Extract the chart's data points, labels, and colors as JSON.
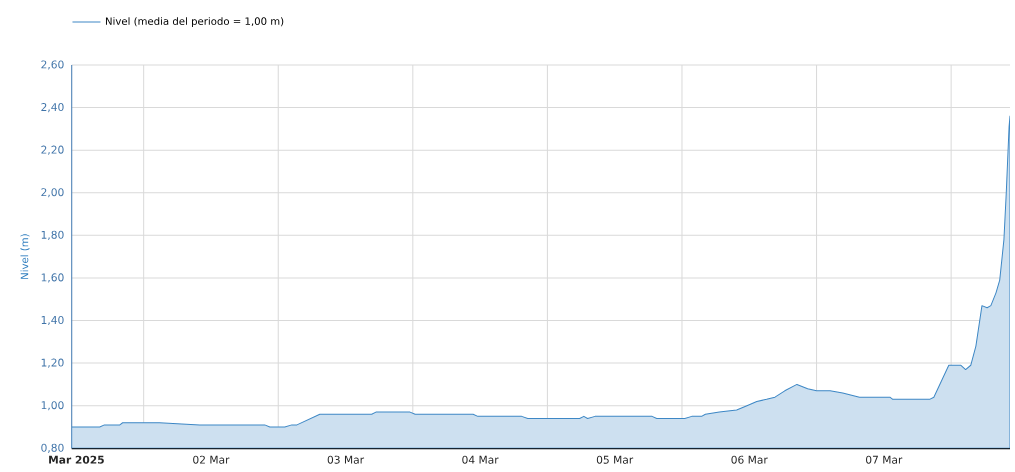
{
  "chart_data": {
    "type": "area",
    "ylabel": "Nivel (m)",
    "x": [
      "2025-02-28T23:10",
      "2025-03-01T04:10",
      "2025-03-01T05:00",
      "2025-03-01T07:45",
      "2025-03-01T08:15",
      "2025-03-01T14:50",
      "2025-03-01T22:00",
      "2025-03-02T09:35",
      "2025-03-02T10:30",
      "2025-03-02T13:10",
      "2025-03-02T14:25",
      "2025-03-02T15:20",
      "2025-03-02T19:25",
      "2025-03-03T04:40",
      "2025-03-03T05:25",
      "2025-03-03T11:30",
      "2025-03-03T12:25",
      "2025-03-03T22:45",
      "2025-03-03T23:35",
      "2025-03-04T07:25",
      "2025-03-04T08:30",
      "2025-03-04T17:45",
      "2025-03-04T18:30",
      "2025-03-04T19:10",
      "2025-03-04T20:30",
      "2025-03-05T06:40",
      "2025-03-05T07:30",
      "2025-03-05T12:30",
      "2025-03-05T13:45",
      "2025-03-05T15:30",
      "2025-03-05T16:10",
      "2025-03-05T18:40",
      "2025-03-05T21:45",
      "2025-03-05T23:35",
      "2025-03-06T01:20",
      "2025-03-06T03:05",
      "2025-03-06T04:35",
      "2025-03-06T06:20",
      "2025-03-06T08:30",
      "2025-03-06T10:25",
      "2025-03-06T12:00",
      "2025-03-06T14:25",
      "2025-03-06T16:40",
      "2025-03-06T19:40",
      "2025-03-07T01:05",
      "2025-03-07T01:35",
      "2025-03-07T08:10",
      "2025-03-07T08:55",
      "2025-03-07T11:35",
      "2025-03-07T13:45",
      "2025-03-07T14:35",
      "2025-03-07T15:30",
      "2025-03-07T16:25",
      "2025-03-07T17:30",
      "2025-03-07T18:25",
      "2025-03-07T19:05",
      "2025-03-07T20:00",
      "2025-03-07T20:40",
      "2025-03-07T21:25",
      "2025-03-07T21:50",
      "2025-03-07T22:20",
      "2025-03-07T22:30"
    ],
    "series": [
      {
        "name": "Nivel (media del periodo = 1,00 m)",
        "color": "#3d87c5",
        "values": [
          0.9,
          0.9,
          0.91,
          0.91,
          0.92,
          0.92,
          0.91,
          0.91,
          0.9,
          0.9,
          0.91,
          0.91,
          0.96,
          0.96,
          0.97,
          0.97,
          0.96,
          0.96,
          0.95,
          0.95,
          0.94,
          0.94,
          0.95,
          0.94,
          0.95,
          0.95,
          0.94,
          0.94,
          0.95,
          0.95,
          0.96,
          0.97,
          0.98,
          1.0,
          1.02,
          1.03,
          1.04,
          1.07,
          1.1,
          1.08,
          1.07,
          1.07,
          1.06,
          1.04,
          1.04,
          1.03,
          1.03,
          1.04,
          1.19,
          1.19,
          1.17,
          1.19,
          1.28,
          1.47,
          1.46,
          1.47,
          1.53,
          1.59,
          1.78,
          2.0,
          2.31,
          2.36
        ]
      }
    ],
    "xlim": [
      "2025-02-28T23:10",
      "2025-03-07T22:30"
    ],
    "ylim": [
      0.8,
      2.6
    ],
    "xticks": [
      {
        "value": "2025-03-01",
        "label": "**Mar 2025**"
      },
      {
        "value": "2025-03-01T12:00",
        "label": null
      },
      {
        "value": "2025-03-02",
        "label": "02 Mar"
      },
      {
        "value": "2025-03-02T12:00",
        "label": null
      },
      {
        "value": "2025-03-03",
        "label": "03 Mar"
      },
      {
        "value": "2025-03-03T12:00",
        "label": null
      },
      {
        "value": "2025-03-04",
        "label": "04 Mar"
      },
      {
        "value": "2025-03-04T12:00",
        "label": null
      },
      {
        "value": "2025-03-05",
        "label": "05 Mar"
      },
      {
        "value": "2025-03-05T12:00",
        "label": null
      },
      {
        "value": "2025-03-06",
        "label": "06 Mar"
      },
      {
        "value": "2025-03-06T12:00",
        "label": null
      },
      {
        "value": "2025-03-07",
        "label": "07 Mar"
      },
      {
        "value": "2025-03-07T12:00",
        "label": null
      }
    ],
    "yticks": [
      {
        "value": 0.8,
        "label": "0,80"
      },
      {
        "value": 1.0,
        "label": "1,00"
      },
      {
        "value": 1.2,
        "label": "1,20"
      },
      {
        "value": 1.4,
        "label": "1,40"
      },
      {
        "value": 1.6,
        "label": "1,60"
      },
      {
        "value": 1.8,
        "label": "1,80"
      },
      {
        "value": 2.0,
        "label": "2,00"
      },
      {
        "value": 2.2,
        "label": "2,20"
      },
      {
        "value": 2.4,
        "label": "2,40"
      },
      {
        "value": 2.6,
        "label": "2,60"
      }
    ],
    "grid": true,
    "legend": "top left"
  }
}
